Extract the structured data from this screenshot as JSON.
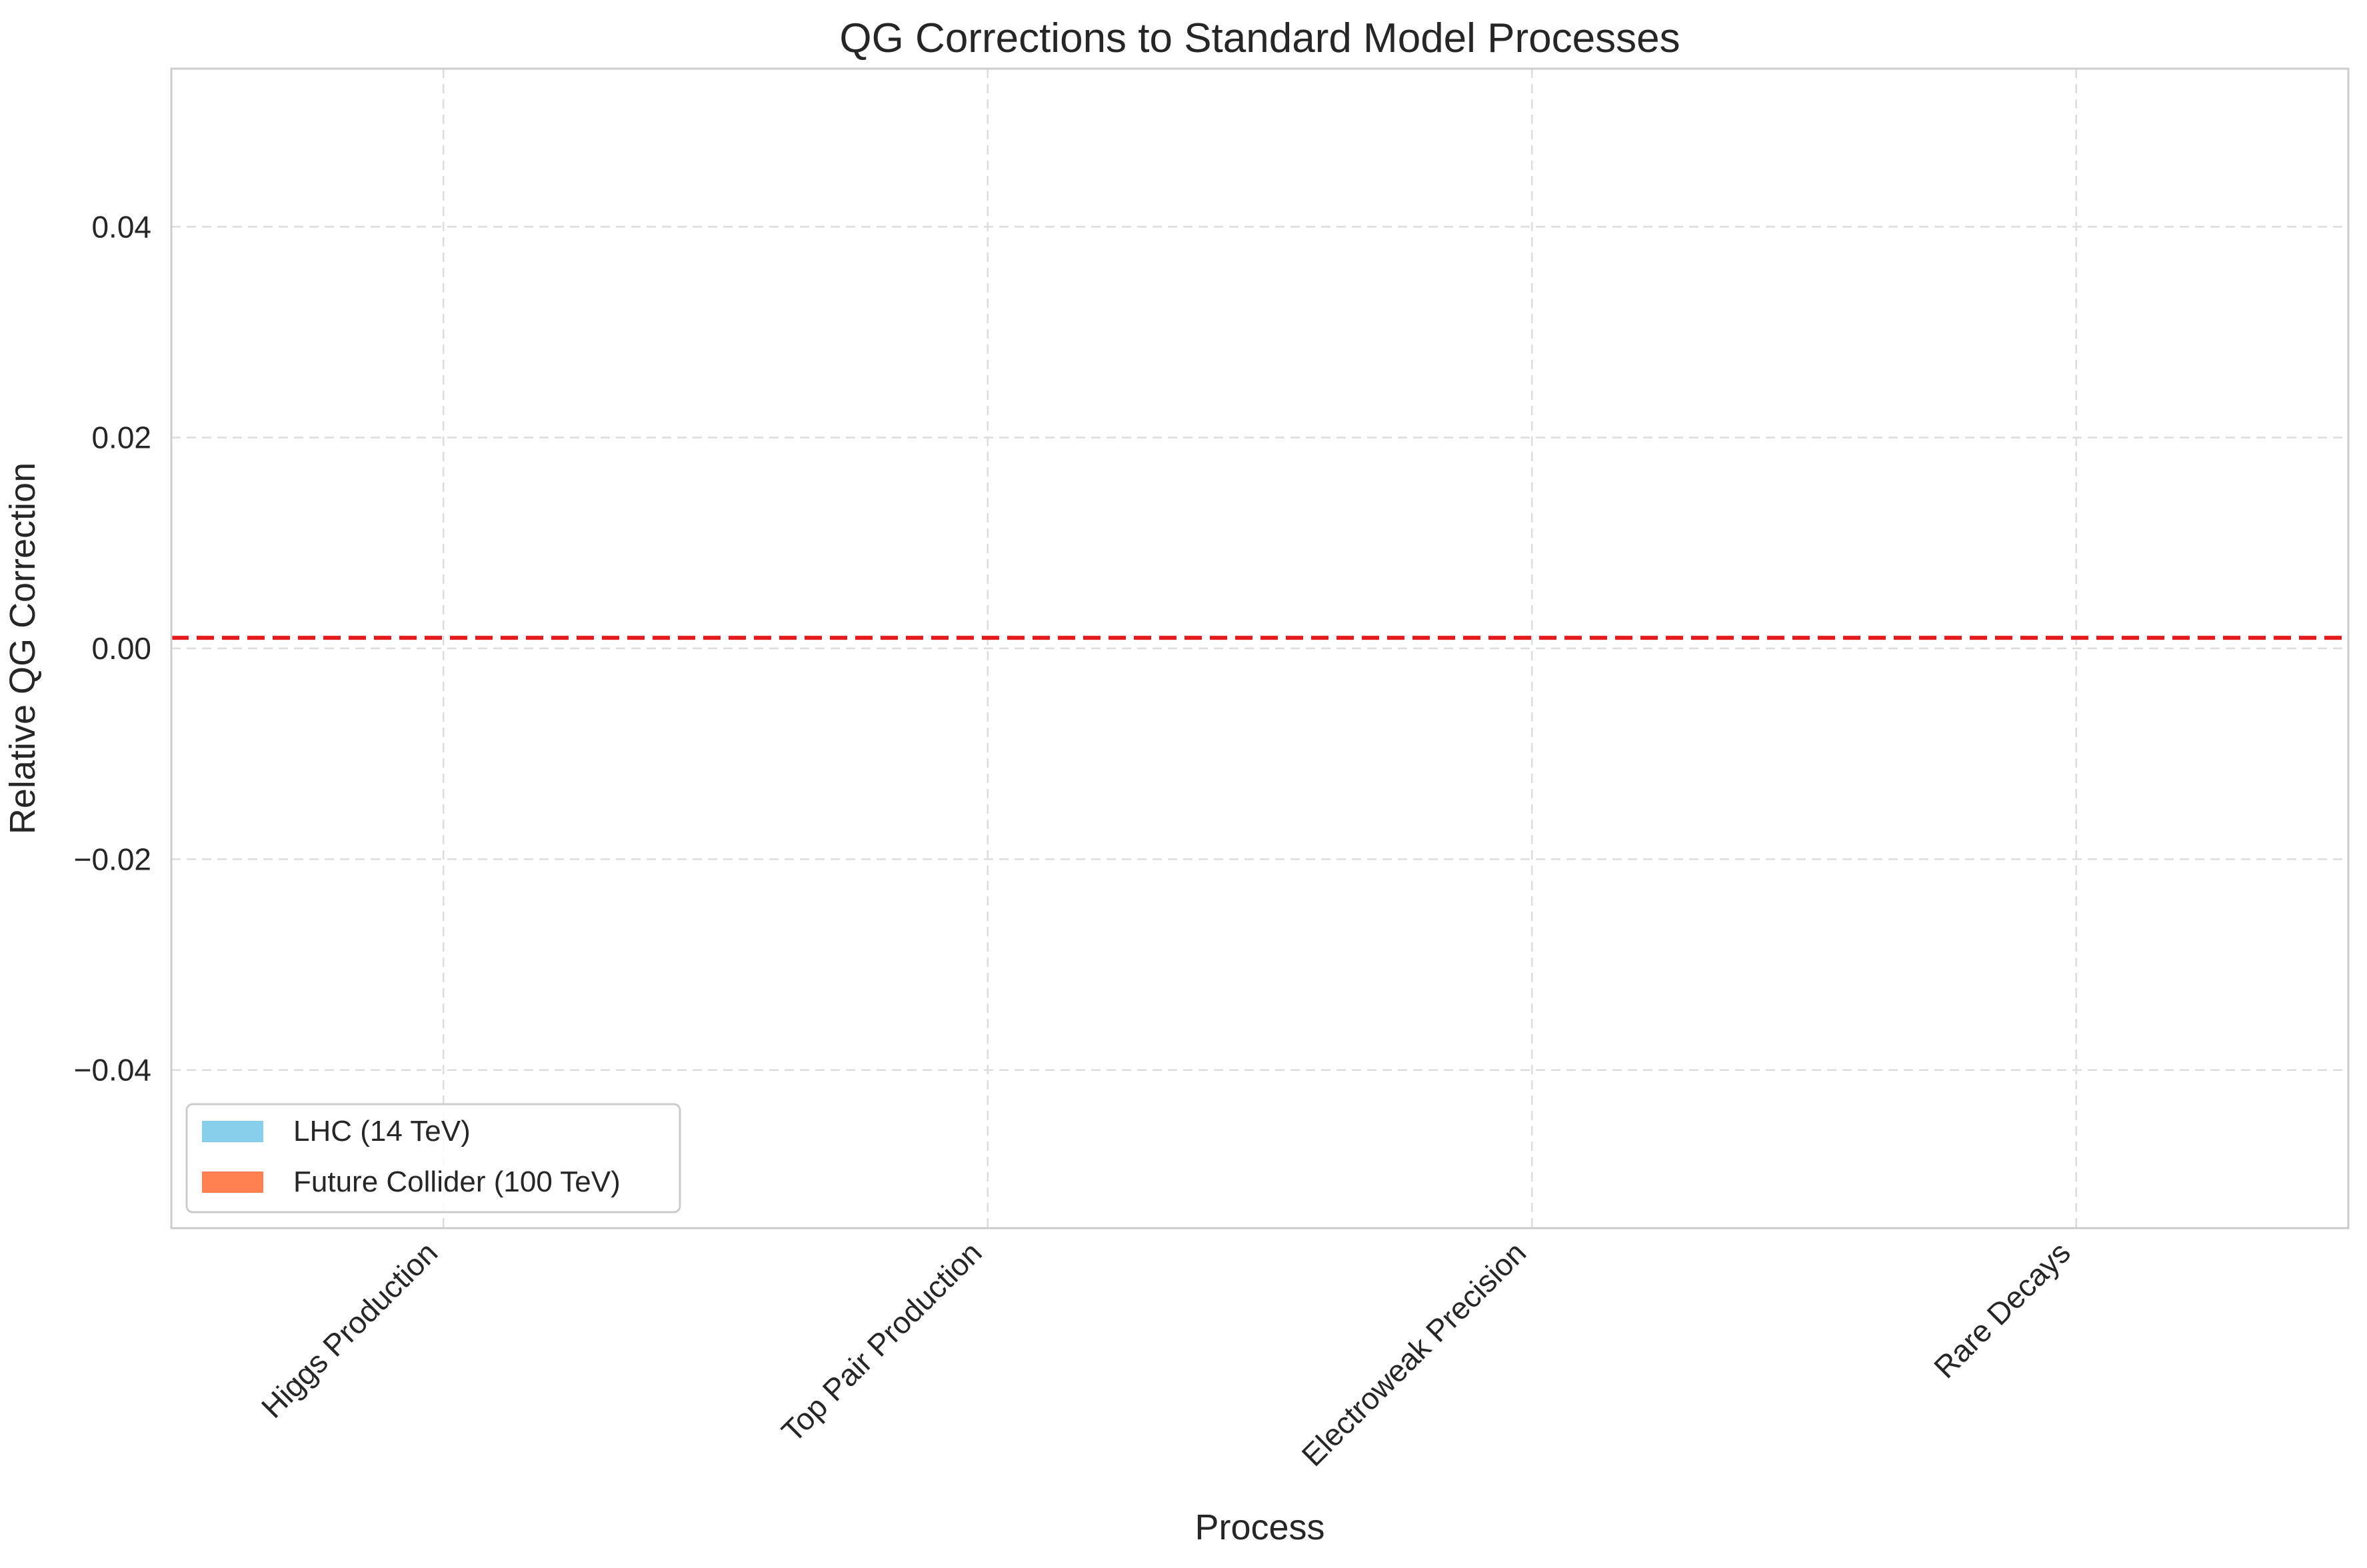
{
  "chart_data": {
    "type": "bar",
    "title": "QG Corrections to Standard Model Processes",
    "xlabel": "Process",
    "ylabel": "Relative QG Correction",
    "categories": [
      "Higgs Production",
      "Top Pair Production",
      "Electroweak Precision",
      "Rare Decays"
    ],
    "series": [
      {
        "name": "LHC (14 TeV)",
        "color": "#87ceeb",
        "values": [
          0,
          0,
          0,
          0
        ]
      },
      {
        "name": "Future Collider (100 TeV)",
        "color": "#ff7f50",
        "values": [
          0,
          0,
          0,
          0
        ]
      }
    ],
    "ylim": [
      -0.055,
      0.055
    ],
    "yticks": [
      -0.04,
      -0.02,
      0.0,
      0.02,
      0.04
    ],
    "ytick_labels": [
      "−0.04",
      "−0.02",
      "0.00",
      "0.02",
      "0.04"
    ],
    "reference_line": {
      "y": 0.001,
      "color": "#e41a1c",
      "style": "dashed"
    },
    "grid": true,
    "legend_position": "lower-left",
    "xtick_rotation": -45
  }
}
